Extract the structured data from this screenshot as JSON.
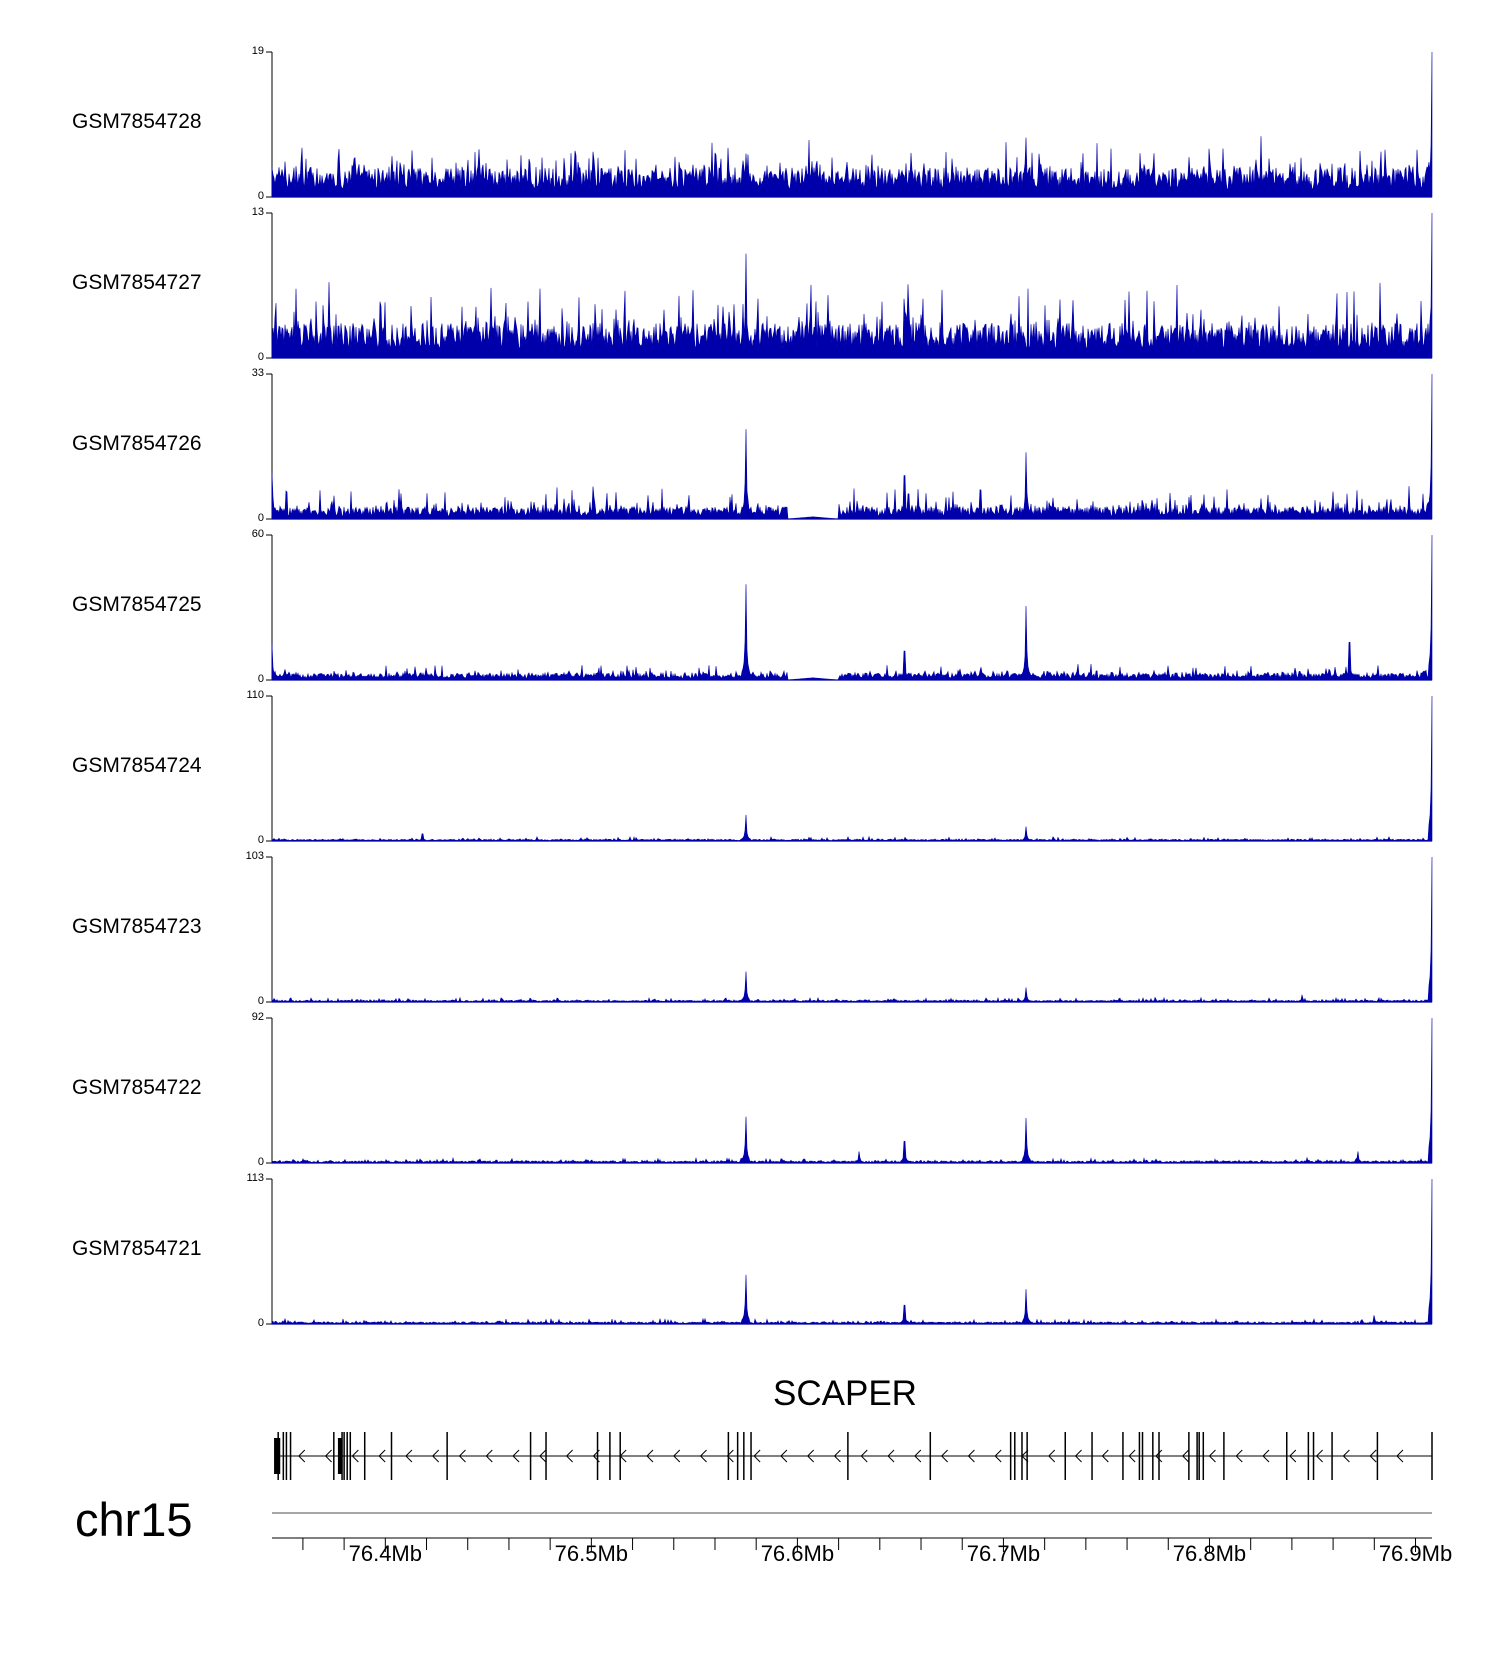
{
  "chart_data": {
    "type": "area",
    "title": "",
    "chromosome": "chr15",
    "xlabel": "",
    "xlim": [
      76.345,
      76.908
    ],
    "x_ticks": [
      "76.4Mb",
      "76.5Mb",
      "76.6Mb",
      "76.7Mb",
      "76.8Mb",
      "76.9Mb"
    ],
    "x_tick_values": [
      76.4,
      76.5,
      76.6,
      76.7,
      76.8,
      76.9
    ],
    "minor_tick_step": 0.02,
    "series_color": "#0000aa",
    "tracks": [
      {
        "name": "GSM7854728",
        "ymin": "0",
        "ymax": "19",
        "ymax_value": 19,
        "baseline": 0.17,
        "noise": 0.13,
        "peaks": [
          [
            76.575,
            0.3
          ],
          [
            76.711,
            0.41
          ],
          [
            76.825,
            0.42
          ],
          [
            76.908,
            1.0
          ]
        ]
      },
      {
        "name": "GSM7854727",
        "ymin": "0",
        "ymax": "13",
        "ymax_value": 13,
        "baseline": 0.2,
        "noise": 0.18,
        "peaks": [
          [
            76.575,
            0.72
          ],
          [
            76.908,
            1.0
          ]
        ]
      },
      {
        "name": "GSM7854726",
        "ymin": "0",
        "ymax": "33",
        "ymax_value": 33,
        "baseline": 0.07,
        "noise": 0.09,
        "gap": [
          76.595,
          76.62
        ],
        "peaks": [
          [
            76.345,
            0.32
          ],
          [
            76.575,
            0.62
          ],
          [
            76.652,
            0.3
          ],
          [
            76.711,
            0.46
          ],
          [
            76.908,
            1.0
          ]
        ]
      },
      {
        "name": "GSM7854725",
        "ymin": "0",
        "ymax": "60",
        "ymax_value": 60,
        "baseline": 0.04,
        "noise": 0.04,
        "gap": [
          76.595,
          76.62
        ],
        "peaks": [
          [
            76.345,
            0.25
          ],
          [
            76.575,
            0.66
          ],
          [
            76.652,
            0.2
          ],
          [
            76.711,
            0.51
          ],
          [
            76.868,
            0.26
          ],
          [
            76.908,
            1.0
          ]
        ]
      },
      {
        "name": "GSM7854724",
        "ymin": "0",
        "ymax": "110",
        "ymax_value": 110,
        "baseline": 0.01,
        "noise": 0.012,
        "peaks": [
          [
            76.418,
            0.05
          ],
          [
            76.575,
            0.18
          ],
          [
            76.711,
            0.1
          ],
          [
            76.908,
            1.0
          ]
        ]
      },
      {
        "name": "GSM7854723",
        "ymin": "0",
        "ymax": "103",
        "ymax_value": 103,
        "baseline": 0.01,
        "noise": 0.012,
        "peaks": [
          [
            76.575,
            0.21
          ],
          [
            76.711,
            0.1
          ],
          [
            76.845,
            0.05
          ],
          [
            76.908,
            1.0
          ]
        ]
      },
      {
        "name": "GSM7854722",
        "ymin": "0",
        "ymax": "92",
        "ymax_value": 92,
        "baseline": 0.012,
        "noise": 0.014,
        "peaks": [
          [
            76.575,
            0.32
          ],
          [
            76.63,
            0.08
          ],
          [
            76.652,
            0.15
          ],
          [
            76.711,
            0.31
          ],
          [
            76.872,
            0.08
          ],
          [
            76.908,
            1.0
          ]
        ]
      },
      {
        "name": "GSM7854721",
        "ymin": "0",
        "ymax": "113",
        "ymax_value": 113,
        "baseline": 0.012,
        "noise": 0.014,
        "peaks": [
          [
            76.575,
            0.34
          ],
          [
            76.652,
            0.13
          ],
          [
            76.711,
            0.24
          ],
          [
            76.88,
            0.06
          ],
          [
            76.908,
            1.0
          ]
        ]
      }
    ],
    "gene": {
      "name": "SCAPER",
      "strand": "-",
      "start": 76.346,
      "end": 76.908,
      "exons": [
        76.348,
        76.3505,
        76.352,
        76.354,
        76.375,
        76.379,
        76.38,
        76.3815,
        76.383,
        76.39,
        76.403,
        76.43,
        76.4705,
        76.478,
        76.503,
        76.509,
        76.514,
        76.5665,
        76.571,
        76.574,
        76.5775,
        76.6245,
        76.6645,
        76.7035,
        76.7055,
        76.709,
        76.7115,
        76.73,
        76.743,
        76.758,
        76.766,
        76.7675,
        76.7725,
        76.7755,
        76.79,
        76.794,
        76.795,
        76.797,
        76.807,
        76.8375,
        76.848,
        76.8505,
        76.8595,
        76.8815,
        76.908
      ],
      "thick_exons": [
        [
          76.346,
          76.349
        ],
        [
          76.377,
          76.379
        ]
      ]
    }
  }
}
